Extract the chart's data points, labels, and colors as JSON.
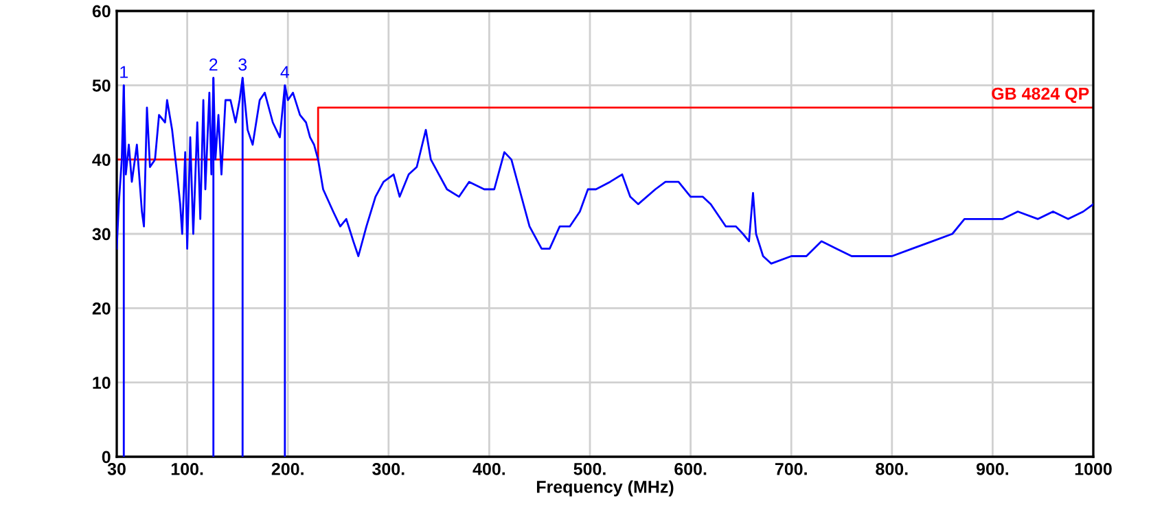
{
  "chart_data": {
    "type": "line",
    "xlabel": "Frequency (MHz)",
    "xlim": [
      30,
      1000
    ],
    "xticks": [
      {
        "value": 30,
        "label": "30"
      },
      {
        "value": 100,
        "label": "100."
      },
      {
        "value": 200,
        "label": "200."
      },
      {
        "value": 300,
        "label": "300."
      },
      {
        "value": 400,
        "label": "400."
      },
      {
        "value": 500,
        "label": "500."
      },
      {
        "value": 600,
        "label": "600."
      },
      {
        "value": 700,
        "label": "700."
      },
      {
        "value": 800,
        "label": "800."
      },
      {
        "value": 900,
        "label": "900."
      },
      {
        "value": 1000,
        "label": "1000"
      }
    ],
    "ylim": [
      0,
      60
    ],
    "yticks": [
      0,
      10,
      20,
      30,
      40,
      50,
      60
    ],
    "grid": true,
    "legend": false,
    "marker": "none",
    "line_style": "solid",
    "series": [
      {
        "color": "#0000ff",
        "x": [
          30,
          32,
          35,
          37,
          39,
          42,
          45,
          50,
          55,
          57,
          60,
          63,
          68,
          72,
          78,
          80,
          85,
          90,
          93,
          95,
          98,
          100,
          103,
          106,
          110,
          113,
          116,
          118,
          122,
          124,
          126,
          128,
          131,
          134,
          138,
          143,
          148,
          152,
          155,
          160,
          165,
          172,
          177,
          185,
          192,
          197,
          200,
          205,
          212,
          218,
          222,
          226,
          230,
          235,
          245,
          252,
          258,
          265,
          270,
          278,
          287,
          295,
          305,
          311,
          320,
          328,
          337,
          342,
          350,
          358,
          370,
          380,
          395,
          405,
          415,
          422,
          430,
          440,
          452,
          460,
          470,
          480,
          490,
          498,
          506,
          520,
          532,
          540,
          548,
          565,
          575,
          588,
          600,
          612,
          620,
          635,
          645,
          652,
          658,
          662,
          665,
          672,
          680,
          700,
          715,
          730,
          745,
          760,
          790,
          800,
          820,
          840,
          860,
          872,
          890,
          910,
          925,
          945,
          960,
          975,
          990,
          1000
        ],
        "values": [
          28,
          34,
          40,
          50,
          38,
          42,
          37,
          42,
          33,
          31,
          47,
          39,
          40,
          46,
          45,
          48,
          44,
          38,
          34,
          30,
          41,
          28,
          43,
          30,
          45,
          32,
          48,
          36,
          49,
          38,
          51,
          40,
          46,
          38,
          48,
          48,
          45,
          48,
          51,
          44,
          42,
          48,
          49,
          45,
          43,
          50,
          48,
          49,
          46,
          45,
          43,
          42,
          40,
          36,
          33,
          31,
          32,
          29,
          27,
          31,
          35,
          37,
          38,
          35,
          38,
          39,
          44,
          40,
          38,
          36,
          35,
          37,
          36,
          36,
          41,
          40,
          36,
          31,
          28,
          28,
          31,
          31,
          33,
          36,
          36,
          37,
          38,
          35,
          34,
          36,
          37,
          37,
          35,
          35,
          34,
          31,
          31,
          30,
          29,
          35.5,
          30,
          27,
          26,
          27,
          27,
          29,
          28,
          27,
          27,
          27,
          28,
          29,
          30,
          32,
          32,
          32,
          33,
          32,
          33,
          32,
          33,
          34
        ]
      },
      {
        "type": "step",
        "name": "GB 4824 QP",
        "color": "#ff0000",
        "x": [
          30,
          230,
          1000
        ],
        "values": [
          40,
          47,
          47
        ]
      },
      {
        "type": "bar",
        "color": "#0000ff",
        "x": [
          37,
          126,
          155,
          197
        ],
        "values": [
          50,
          51,
          51,
          50
        ]
      }
    ],
    "annotations": [
      {
        "text": "1",
        "x": 37,
        "y": 50
      },
      {
        "text": "2",
        "x": 126,
        "y": 51
      },
      {
        "text": "3",
        "x": 155,
        "y": 51
      },
      {
        "text": "4",
        "x": 197,
        "y": 50
      }
    ]
  }
}
